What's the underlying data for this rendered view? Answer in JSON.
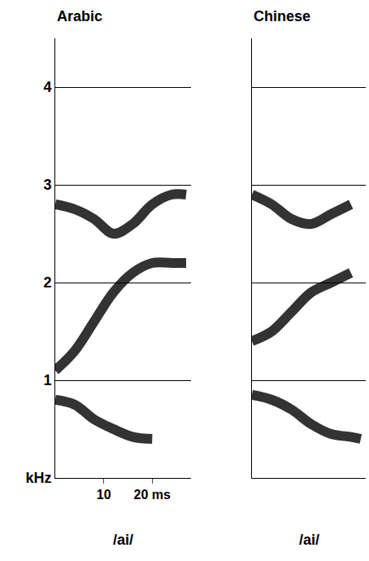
{
  "chart_data": [
    {
      "type": "line",
      "title": "Arabic",
      "xlabel": "/ai/",
      "xlim": [
        0,
        28
      ],
      "xticks": [
        {
          "value": 10,
          "label": "10"
        },
        {
          "value": 20,
          "label": "20 ms"
        }
      ],
      "ylim": [
        0,
        4.5
      ],
      "yticks": [
        {
          "value": 0,
          "label": "kHz"
        },
        1,
        2,
        3,
        4
      ],
      "grid": true,
      "x": [
        0,
        4,
        8,
        12,
        16,
        20,
        24,
        27
      ],
      "series": [
        {
          "color": "#000000",
          "values": [
            0.8,
            0.75,
            0.6,
            0.5,
            0.42,
            0.4,
            null,
            null
          ]
        },
        {
          "color": "#000000",
          "values": [
            1.1,
            1.3,
            1.6,
            1.9,
            2.1,
            2.2,
            2.2,
            2.2
          ]
        },
        {
          "color": "#000000",
          "values": [
            2.8,
            2.75,
            2.65,
            2.5,
            2.6,
            2.8,
            2.9,
            2.9
          ]
        }
      ]
    },
    {
      "type": "line",
      "title": "Chinese",
      "xlabel": "/ai/",
      "xlim": [
        0,
        23
      ],
      "ylim": [
        0,
        4.5
      ],
      "yticks": [
        1,
        2,
        3,
        4
      ],
      "grid": true,
      "tick_labels": false,
      "x": [
        0,
        4,
        8,
        12,
        16,
        20,
        22
      ],
      "series": [
        {
          "color": "#000000",
          "values": [
            0.85,
            0.8,
            0.7,
            0.55,
            0.45,
            0.42,
            0.4
          ]
        },
        {
          "color": "#000000",
          "values": [
            1.4,
            1.5,
            1.7,
            1.9,
            2.0,
            2.1,
            null
          ]
        },
        {
          "color": "#000000",
          "values": [
            2.9,
            2.8,
            2.65,
            2.6,
            2.7,
            2.8,
            null
          ]
        }
      ]
    }
  ]
}
